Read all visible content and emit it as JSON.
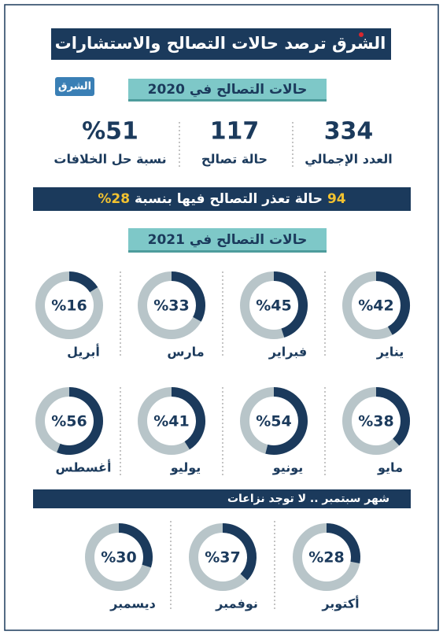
{
  "header": {
    "logo": "الشرق",
    "title": "ترصد حالات التصالح والاستشارات"
  },
  "badge": "الشرق",
  "section_2020": {
    "title": "حالات التصالح في 2020",
    "stats": [
      {
        "value": "334",
        "label": "العدد الإجمالي"
      },
      {
        "value": "117",
        "label": "حالة تصالح"
      },
      {
        "value": "%51",
        "label": "نسبة حل الخلافات"
      }
    ]
  },
  "failed": {
    "count": "94",
    "text": "حالة تعذر التصالح فيها بنسبة",
    "percent": "28%"
  },
  "section_2021": {
    "title": "حالات التصالح في 2021",
    "months": [
      {
        "name": "يناير",
        "value": 42,
        "label": "%42"
      },
      {
        "name": "فبراير",
        "value": 45,
        "label": "%45"
      },
      {
        "name": "مارس",
        "value": 33,
        "label": "%33"
      },
      {
        "name": "أبريل",
        "value": 16,
        "label": "%16"
      },
      {
        "name": "مايو",
        "value": 38,
        "label": "%38"
      },
      {
        "name": "يونيو",
        "value": 54,
        "label": "%54"
      },
      {
        "name": "يوليو",
        "value": 41,
        "label": "%41"
      },
      {
        "name": "أغسطس",
        "value": 56,
        "label": "%56"
      },
      {
        "name": "أكتوبر",
        "value": 28,
        "label": "%28"
      },
      {
        "name": "نوفمبر",
        "value": 37,
        "label": "%37"
      },
      {
        "name": "ديسمبر",
        "value": 30,
        "label": "%30"
      }
    ],
    "note": "شهر سبتمبر .. لا توجد نزاعات"
  }
}
